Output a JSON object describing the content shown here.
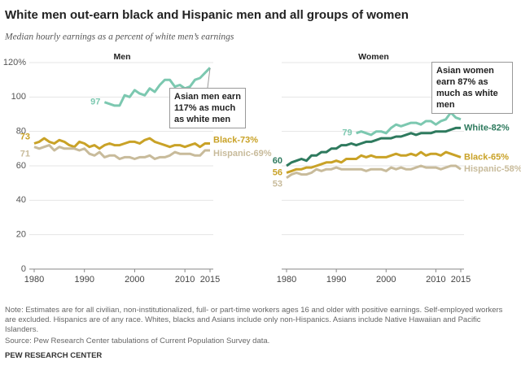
{
  "title": "White men out-earn black and Hispanic men and all groups of women",
  "subtitle": "Median hourly earnings as a percent of white men’s earnings",
  "note": "Note: Estimates are for all civilian, non-institutionalized, full- or part-time workers ages 16 and older with positive earnings. Self-employed workers are excluded. Hispanics are of any race. Whites, blacks and Asians include only non-Hispanics. Asians include Native Hawaiian and Pacific Islanders.",
  "source": "Source: Pew Research Center tabulations of Current Population Survey data.",
  "credit": "PEW RESEARCH CENTER",
  "chart_data": [
    {
      "type": "line",
      "title": "Men",
      "x": [
        1980,
        1981,
        1982,
        1983,
        1984,
        1985,
        1986,
        1987,
        1988,
        1989,
        1990,
        1991,
        1992,
        1993,
        1994,
        1995,
        1996,
        1997,
        1998,
        1999,
        2000,
        2001,
        2002,
        2003,
        2004,
        2005,
        2006,
        2007,
        2008,
        2009,
        2010,
        2011,
        2012,
        2013,
        2014,
        2015
      ],
      "xlim": [
        1980,
        2015
      ],
      "xticks": [
        1980,
        1990,
        2000,
        2010,
        2015
      ],
      "ylim": [
        0,
        120
      ],
      "yticks": [
        0,
        20,
        40,
        60,
        80,
        100,
        {
          "value": 120,
          "label": "120%"
        }
      ],
      "show_ytick_labels": true,
      "grid": true,
      "annotation": "Asian men earn 117% as much as white men",
      "series": [
        {
          "name": "Black",
          "color": "#c9a227",
          "values": [
            73,
            74,
            76,
            74,
            73,
            75,
            74,
            72,
            71,
            74,
            73,
            71,
            72,
            70,
            72,
            73,
            72,
            72,
            73,
            74,
            74,
            73,
            75,
            76,
            74,
            73,
            72,
            71,
            72,
            72,
            71,
            72,
            73,
            71,
            73,
            73
          ],
          "value_labels": [
            null,
            null,
            null,
            null,
            null,
            null,
            null,
            null,
            null,
            null,
            null,
            null,
            null,
            null,
            null,
            null,
            null,
            null,
            null,
            null,
            null,
            null,
            null,
            null,
            null,
            null,
            null,
            null,
            null,
            null,
            null,
            null,
            null,
            null,
            null,
            "Black-73%"
          ]
        },
        {
          "name": "Hispanic",
          "color": "#c8bb9b",
          "values": [
            71,
            70,
            71,
            72,
            69,
            71,
            70,
            70,
            70,
            69,
            70,
            67,
            66,
            68,
            65,
            66,
            66,
            64,
            65,
            65,
            64,
            65,
            65,
            66,
            64,
            65,
            65,
            66,
            68,
            67,
            67,
            67,
            66,
            66,
            69,
            69
          ],
          "value_labels": [
            null,
            null,
            null,
            null,
            null,
            null,
            null,
            null,
            null,
            null,
            null,
            null,
            null,
            null,
            null,
            null,
            null,
            null,
            null,
            null,
            null,
            null,
            null,
            null,
            null,
            null,
            null,
            null,
            null,
            null,
            null,
            null,
            null,
            null,
            null,
            "Hispanic-69%"
          ]
        },
        {
          "name": "Asian",
          "color": "#7cc8b0",
          "values": [
            null,
            null,
            null,
            null,
            null,
            null,
            null,
            null,
            null,
            null,
            null,
            null,
            null,
            null,
            97,
            96,
            95,
            95,
            101,
            100,
            104,
            102,
            101,
            105,
            103,
            107,
            110,
            110,
            106,
            107,
            105,
            106,
            110,
            111,
            114,
            117
          ]
        }
      ]
    },
    {
      "type": "line",
      "title": "Women",
      "x": [
        1980,
        1981,
        1982,
        1983,
        1984,
        1985,
        1986,
        1987,
        1988,
        1989,
        1990,
        1991,
        1992,
        1993,
        1994,
        1995,
        1996,
        1997,
        1998,
        1999,
        2000,
        2001,
        2002,
        2003,
        2004,
        2005,
        2006,
        2007,
        2008,
        2009,
        2010,
        2011,
        2012,
        2013,
        2014,
        2015
      ],
      "xlim": [
        1980,
        2015
      ],
      "xticks": [
        1980,
        1990,
        2000,
        2010,
        2015
      ],
      "ylim": [
        0,
        120
      ],
      "yticks": [
        0,
        20,
        40,
        60,
        80,
        100,
        120
      ],
      "show_ytick_labels": false,
      "grid": true,
      "annotation": "Asian women earn 87% as much as white men",
      "series": [
        {
          "name": "White",
          "color": "#2e7a5e",
          "values": [
            60,
            62,
            63,
            64,
            63,
            66,
            66,
            68,
            68,
            70,
            70,
            72,
            72,
            73,
            72,
            73,
            74,
            74,
            75,
            76,
            76,
            76,
            77,
            77,
            78,
            79,
            78,
            79,
            79,
            79,
            80,
            80,
            80,
            81,
            82,
            82
          ],
          "value_labels": [
            null,
            null,
            null,
            null,
            null,
            null,
            null,
            null,
            null,
            null,
            null,
            null,
            null,
            null,
            null,
            null,
            null,
            null,
            null,
            null,
            null,
            null,
            null,
            null,
            null,
            null,
            null,
            null,
            null,
            null,
            null,
            null,
            null,
            null,
            null,
            "White-82%"
          ]
        },
        {
          "name": "Black",
          "color": "#c9a227",
          "values": [
            56,
            57,
            58,
            58,
            59,
            59,
            60,
            61,
            62,
            62,
            63,
            62,
            64,
            64,
            64,
            66,
            65,
            66,
            65,
            65,
            65,
            66,
            67,
            66,
            66,
            67,
            66,
            68,
            66,
            67,
            67,
            66,
            68,
            67,
            66,
            65
          ],
          "value_labels": [
            null,
            null,
            null,
            null,
            null,
            null,
            null,
            null,
            null,
            null,
            null,
            null,
            null,
            null,
            null,
            null,
            null,
            null,
            null,
            null,
            null,
            null,
            null,
            null,
            null,
            null,
            null,
            null,
            null,
            null,
            null,
            null,
            null,
            null,
            null,
            "Black-65%"
          ]
        },
        {
          "name": "Hispanic",
          "color": "#c8bb9b",
          "values": [
            53,
            55,
            56,
            55,
            55,
            56,
            58,
            57,
            58,
            58,
            59,
            58,
            58,
            58,
            58,
            58,
            57,
            58,
            58,
            58,
            57,
            59,
            58,
            59,
            58,
            58,
            59,
            60,
            59,
            59,
            59,
            58,
            59,
            60,
            60,
            58
          ],
          "value_labels": [
            null,
            null,
            null,
            null,
            null,
            null,
            null,
            null,
            null,
            null,
            null,
            null,
            null,
            null,
            null,
            null,
            null,
            null,
            null,
            null,
            null,
            null,
            null,
            null,
            null,
            null,
            null,
            null,
            null,
            null,
            null,
            null,
            null,
            null,
            null,
            "Hispanic-58%"
          ]
        },
        {
          "name": "Asian",
          "color": "#7cc8b0",
          "values": [
            null,
            null,
            null,
            null,
            null,
            null,
            null,
            null,
            null,
            null,
            null,
            null,
            null,
            null,
            79,
            80,
            79,
            78,
            80,
            80,
            79,
            82,
            84,
            83,
            84,
            85,
            85,
            84,
            86,
            86,
            84,
            86,
            87,
            91,
            88,
            87
          ]
        }
      ]
    }
  ]
}
